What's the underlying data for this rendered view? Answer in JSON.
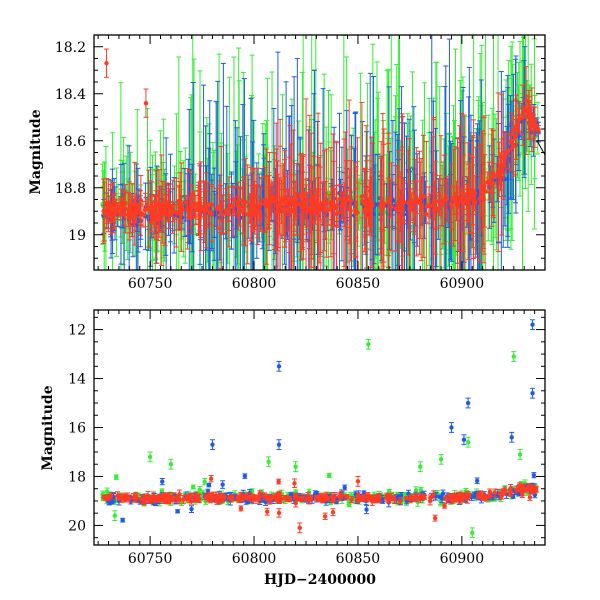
{
  "chart_data": [
    {
      "type": "scatter",
      "panel": "top",
      "title": "",
      "xlabel": "",
      "ylabel": "Magnitude",
      "xlim": [
        60723,
        60940
      ],
      "ylim": [
        19.15,
        18.15
      ],
      "y_inverted": true,
      "xticks": [
        60750,
        60800,
        60850,
        60900
      ],
      "yticks": [
        18.2,
        18.4,
        18.6,
        18.8,
        19.0
      ],
      "ytick_labels": [
        "18.2",
        "18.4",
        "18.6",
        "18.8",
        "19"
      ],
      "grid": false,
      "legend": "none",
      "series": [
        {
          "color": "#33ee33",
          "x": [
            60727,
            60735,
            60742,
            60750,
            60760,
            60770,
            60780,
            60790,
            60800,
            60810,
            60820,
            60830,
            60840,
            60850,
            60860,
            60870,
            60880,
            60890,
            60900,
            60910,
            60920,
            60930,
            60936
          ],
          "y": [
            18.9,
            18.86,
            18.88,
            18.92,
            18.89,
            18.87,
            18.9,
            18.88,
            18.87,
            18.86,
            18.88,
            18.89,
            18.85,
            18.87,
            18.88,
            18.86,
            18.87,
            18.88,
            18.84,
            18.82,
            18.72,
            18.45,
            18.58
          ],
          "err": [
            0.15,
            0.2,
            0.3,
            0.2,
            0.3,
            0.35,
            0.3,
            0.35,
            0.4,
            0.4,
            0.4,
            0.4,
            0.4,
            0.4,
            0.35,
            0.4,
            0.4,
            0.4,
            0.4,
            0.4,
            0.4,
            0.3,
            0.15
          ]
        },
        {
          "color": "#1f5ce6",
          "x": [
            60727,
            60735,
            60742,
            60750,
            60760,
            60770,
            60780,
            60790,
            60800,
            60810,
            60820,
            60830,
            60840,
            60850,
            60860,
            60870,
            60880,
            60890,
            60900,
            60910,
            60920,
            60930,
            60936
          ],
          "y": [
            18.91,
            18.9,
            18.93,
            18.91,
            18.9,
            18.89,
            18.91,
            18.9,
            18.88,
            18.89,
            18.88,
            18.9,
            18.87,
            18.88,
            18.89,
            18.88,
            18.86,
            18.89,
            18.86,
            18.84,
            18.74,
            18.48,
            18.56
          ],
          "err": [
            0.1,
            0.15,
            0.2,
            0.15,
            0.2,
            0.25,
            0.3,
            0.3,
            0.3,
            0.35,
            0.3,
            0.35,
            0.3,
            0.35,
            0.3,
            0.35,
            0.3,
            0.4,
            0.35,
            0.35,
            0.35,
            0.25,
            0.1
          ]
        },
        {
          "color": "#ff3b24",
          "x": [
            60727,
            60735,
            60742,
            60750,
            60760,
            60770,
            60780,
            60790,
            60800,
            60810,
            60820,
            60830,
            60840,
            60850,
            60860,
            60870,
            60880,
            60890,
            60900,
            60910,
            60920,
            60930,
            60936
          ],
          "y": [
            18.89,
            18.88,
            18.89,
            18.9,
            18.89,
            18.88,
            18.89,
            18.88,
            18.88,
            18.87,
            18.87,
            18.88,
            18.87,
            18.88,
            18.87,
            18.88,
            18.87,
            18.86,
            18.85,
            18.82,
            18.7,
            18.46,
            18.55
          ],
          "err": [
            0.08,
            0.08,
            0.1,
            0.1,
            0.1,
            0.12,
            0.12,
            0.15,
            0.15,
            0.2,
            0.2,
            0.2,
            0.2,
            0.2,
            0.2,
            0.2,
            0.2,
            0.2,
            0.2,
            0.2,
            0.15,
            0.1,
            0.08
          ]
        }
      ],
      "annotations": [
        {
          "x": 60748,
          "y": 18.44,
          "color": "#ff3b24"
        },
        {
          "x": 60729,
          "y": 18.27,
          "color": "#ff3b24"
        }
      ]
    },
    {
      "type": "scatter",
      "panel": "bottom",
      "title": "",
      "xlabel": "HJD−2400000",
      "ylabel": "Magnitude",
      "xlim": [
        60723,
        60940
      ],
      "ylim": [
        20.8,
        11.2
      ],
      "y_inverted": true,
      "xticks": [
        60750,
        60800,
        60850,
        60900
      ],
      "yticks": [
        12,
        14,
        16,
        18,
        20
      ],
      "grid": false,
      "legend": "none",
      "series": [
        {
          "color": "#33ee33",
          "baseline": 18.9,
          "outliers": [
            {
              "x": 60750,
              "y": 17.2
            },
            {
              "x": 60760,
              "y": 17.5
            },
            {
              "x": 60733,
              "y": 19.6
            },
            {
              "x": 60807,
              "y": 17.4
            },
            {
              "x": 60820,
              "y": 17.6
            },
            {
              "x": 60855,
              "y": 12.6
            },
            {
              "x": 60880,
              "y": 17.6
            },
            {
              "x": 60890,
              "y": 17.3
            },
            {
              "x": 60903,
              "y": 16.6
            },
            {
              "x": 60905,
              "y": 20.3
            },
            {
              "x": 60925,
              "y": 13.1
            },
            {
              "x": 60928,
              "y": 17.1
            }
          ]
        },
        {
          "color": "#1f5ce6",
          "baseline": 18.95,
          "outliers": [
            {
              "x": 60780,
              "y": 16.7
            },
            {
              "x": 60812,
              "y": 13.5
            },
            {
              "x": 60812,
              "y": 16.7
            },
            {
              "x": 60895,
              "y": 16.0
            },
            {
              "x": 60903,
              "y": 15.0
            },
            {
              "x": 60901,
              "y": 16.5
            },
            {
              "x": 60924,
              "y": 16.4
            },
            {
              "x": 60934,
              "y": 11.8
            },
            {
              "x": 60934,
              "y": 14.6
            }
          ]
        },
        {
          "color": "#ff3b24",
          "baseline": 18.85,
          "outliers": [
            {
              "x": 60822,
              "y": 20.1
            },
            {
              "x": 60850,
              "y": 18.2
            }
          ]
        }
      ]
    }
  ]
}
